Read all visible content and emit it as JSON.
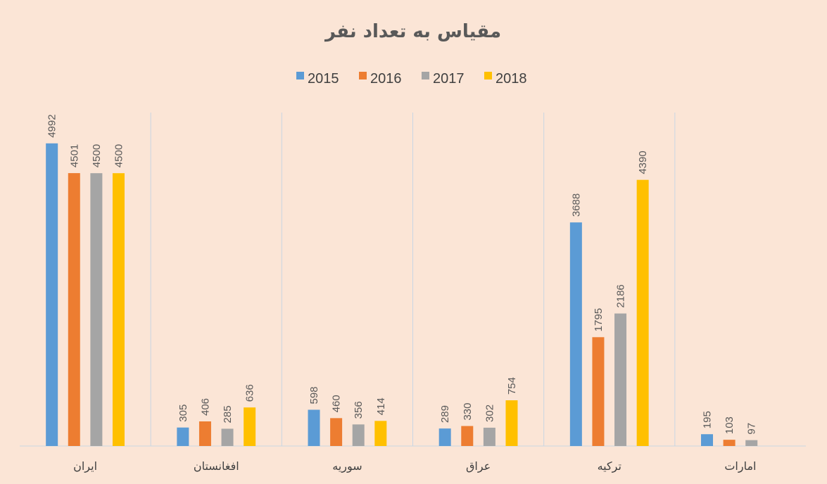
{
  "chart_data": {
    "type": "bar",
    "title": "مقیاس به تعداد نفر",
    "categories": [
      "ایران",
      "افغانستان",
      "سوریه",
      "عراق",
      "ترکیه",
      "امارات"
    ],
    "series": [
      {
        "name": "2015",
        "color": "#5b9bd5",
        "values": [
          4992,
          305,
          598,
          289,
          3688,
          195
        ]
      },
      {
        "name": "2016",
        "color": "#ed7d31",
        "values": [
          4501,
          406,
          460,
          330,
          1795,
          103
        ]
      },
      {
        "name": "2017",
        "color": "#a5a5a5",
        "values": [
          4500,
          285,
          356,
          302,
          2186,
          97
        ]
      },
      {
        "name": "2018",
        "color": "#ffc000",
        "values": [
          4500,
          636,
          414,
          754,
          4390,
          null
        ]
      }
    ],
    "ylim": [
      0,
      5500
    ],
    "legend_position": "top",
    "grid": "vertical category separators",
    "data_labels": true
  },
  "colors": {
    "background": "#fbe5d6",
    "gridline": "#c9d6e3"
  }
}
